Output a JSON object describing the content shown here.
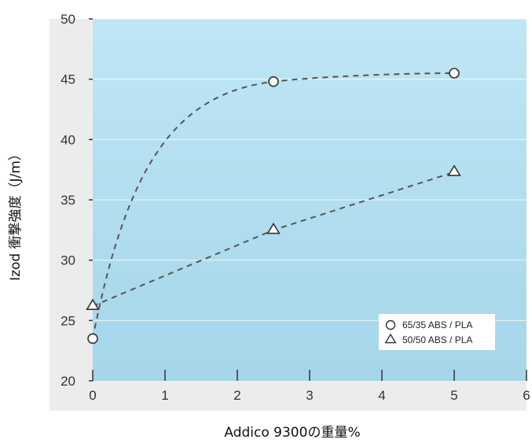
{
  "chart_data": {
    "type": "line",
    "title": "",
    "xlabel": "Addico 9300の重量%",
    "ylabel": "Izod 衝撃強度（J/m）",
    "xlim": [
      0,
      6
    ],
    "ylim": [
      20,
      50
    ],
    "x_ticks": [
      "0",
      "1",
      "2",
      "3",
      "4",
      "5",
      "6"
    ],
    "y_ticks": [
      "20",
      "25",
      "30",
      "35",
      "40",
      "45",
      "50"
    ],
    "grid": true,
    "legend_position": "bottom-right",
    "series": [
      {
        "name": "65/35 ABS / PLA",
        "marker": "circle",
        "x": [
          0,
          2.5,
          5
        ],
        "y": [
          23.5,
          44.8,
          45.5
        ]
      },
      {
        "name": "50/50 ABS / PLA",
        "marker": "triangle",
        "x": [
          0,
          2.5,
          5
        ],
        "y": [
          26.2,
          32.5,
          37.3
        ]
      }
    ],
    "colors": {
      "plot_bg_top": "#bfe6f5",
      "plot_bg_bottom": "#a5d6ea",
      "frame_bg": "#ececec",
      "line": "#555555",
      "marker_fill": "#ffffff"
    }
  }
}
